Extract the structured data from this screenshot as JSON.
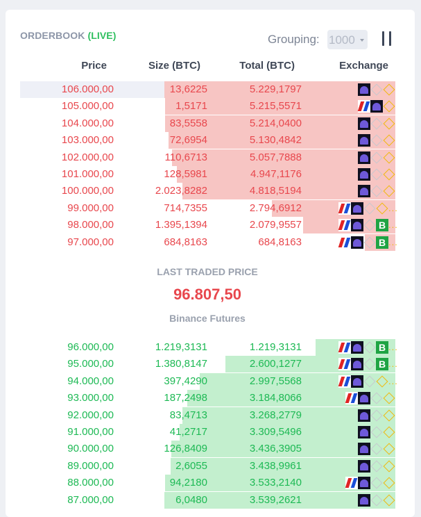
{
  "header": {
    "title": "ORDERBOOK",
    "live": "(LIVE)",
    "grouping_label": "Grouping:",
    "grouping_value": "1000",
    "pause_icon": "pause-icon"
  },
  "columns": {
    "price": "Price",
    "size": "Size (BTC)",
    "total": "Total (BTC)",
    "exchange": "Exchange"
  },
  "asks": [
    {
      "price": "106.000,00",
      "size": "13,6225",
      "total": "5.229,1797",
      "depth": 1.0,
      "exchanges": [
        "kraken",
        "bitmex-dim",
        "binance"
      ]
    },
    {
      "price": "105.000,00",
      "size": "1,5171",
      "total": "5.215,5571",
      "depth": 0.997,
      "exchanges": [
        "bitfinex",
        "kraken",
        "binance"
      ]
    },
    {
      "price": "104.000,00",
      "size": "83,5558",
      "total": "5.214,0400",
      "depth": 0.997,
      "exchanges": [
        "kraken",
        "bitmex-dim",
        "binance"
      ]
    },
    {
      "price": "103.000,00",
      "size": "72,6954",
      "total": "5.130,4842",
      "depth": 0.981,
      "exchanges": [
        "kraken",
        "bitmex-dim",
        "binance"
      ]
    },
    {
      "price": "102.000,00",
      "size": "110,6713",
      "total": "5.057,7888",
      "depth": 0.967,
      "exchanges": [
        "kraken",
        "bitmex-dim",
        "binance"
      ]
    },
    {
      "price": "101.000,00",
      "size": "128,5981",
      "total": "4.947,1176",
      "depth": 0.946,
      "exchanges": [
        "kraken",
        "bitmex-dim",
        "binance"
      ]
    },
    {
      "price": "100.000,00",
      "size": "2.023,8282",
      "total": "4.818,5194",
      "depth": 0.921,
      "exchanges": [
        "kraken",
        "bitmex-dim",
        "binance"
      ]
    },
    {
      "price": "99.000,00",
      "size": "714,7355",
      "total": "2.794,6912",
      "depth": 0.534,
      "exchanges": [
        "bitfinex",
        "kraken",
        "bitmex-dim",
        "binance"
      ],
      "more": true
    },
    {
      "price": "98.000,00",
      "size": "1.395,1394",
      "total": "2.079,9557",
      "depth": 0.398,
      "exchanges": [
        "bitfinex",
        "kraken",
        "bitmex-dim",
        "bitstamp"
      ],
      "more": true
    },
    {
      "price": "97.000,00",
      "size": "684,8163",
      "total": "684,8163",
      "depth": 0.131,
      "exchanges": [
        "bitfinex",
        "kraken",
        "bitmex-dim",
        "bitstamp"
      ],
      "more": true
    }
  ],
  "last_traded": {
    "label": "LAST TRADED PRICE",
    "value": "96.807,50",
    "source": "Binance Futures"
  },
  "bids": [
    {
      "price": "96.000,00",
      "size": "1.219,3131",
      "total": "1.219,3131",
      "depth": 0.344,
      "exchanges": [
        "bitfinex",
        "kraken",
        "bitmex-dim",
        "bitstamp"
      ],
      "more": true
    },
    {
      "price": "95.000,00",
      "size": "1.380,8147",
      "total": "2.600,1277",
      "depth": 0.735,
      "exchanges": [
        "bitfinex",
        "kraken",
        "bitmex-dim",
        "bitstamp"
      ],
      "more": true
    },
    {
      "price": "94.000,00",
      "size": "397,4290",
      "total": "2.997,5568",
      "depth": 0.847,
      "exchanges": [
        "bitfinex",
        "kraken",
        "bitmex-dim",
        "binance"
      ],
      "more": true
    },
    {
      "price": "93.000,00",
      "size": "187,2498",
      "total": "3.184,8066",
      "depth": 0.9,
      "exchanges": [
        "bitfinex",
        "kraken",
        "bitmex-dim",
        "binance"
      ]
    },
    {
      "price": "92.000,00",
      "size": "83,4713",
      "total": "3.268,2779",
      "depth": 0.923,
      "exchanges": [
        "kraken",
        "bitmex-dim",
        "binance"
      ]
    },
    {
      "price": "91.000,00",
      "size": "41,2717",
      "total": "3.309,5496",
      "depth": 0.935,
      "exchanges": [
        "kraken",
        "bitmex-dim",
        "binance"
      ]
    },
    {
      "price": "90.000,00",
      "size": "126,8409",
      "total": "3.436,3905",
      "depth": 0.971,
      "exchanges": [
        "kraken",
        "bitmex-dim",
        "binance"
      ]
    },
    {
      "price": "89.000,00",
      "size": "2,6055",
      "total": "3.438,9961",
      "depth": 0.972,
      "exchanges": [
        "kraken",
        "bitmex-dim",
        "binance"
      ]
    },
    {
      "price": "88.000,00",
      "size": "94,2180",
      "total": "3.533,2140",
      "depth": 0.998,
      "exchanges": [
        "bitfinex",
        "kraken",
        "bitmex-dim",
        "binance"
      ]
    },
    {
      "price": "87.000,00",
      "size": "6,0480",
      "total": "3.539,2621",
      "depth": 1.0,
      "exchanges": [
        "kraken",
        "bitmex-dim",
        "binance"
      ]
    }
  ],
  "exchange_icons": {
    "kraken": "kraken-icon",
    "binance": "binance-icon",
    "bitmex-dim": "bitmex-icon",
    "bitfinex": "bitfinex-icon",
    "bitstamp": "bitstamp-icon"
  },
  "exchange_glyphs": {
    "bitstamp": "B"
  },
  "more_text": "...",
  "colors": {
    "ask": "#e8474d",
    "ask_depth": "#f7c5c3",
    "bid": "#1db954",
    "bid_depth": "#c3efce",
    "live": "#2fbf5f"
  }
}
